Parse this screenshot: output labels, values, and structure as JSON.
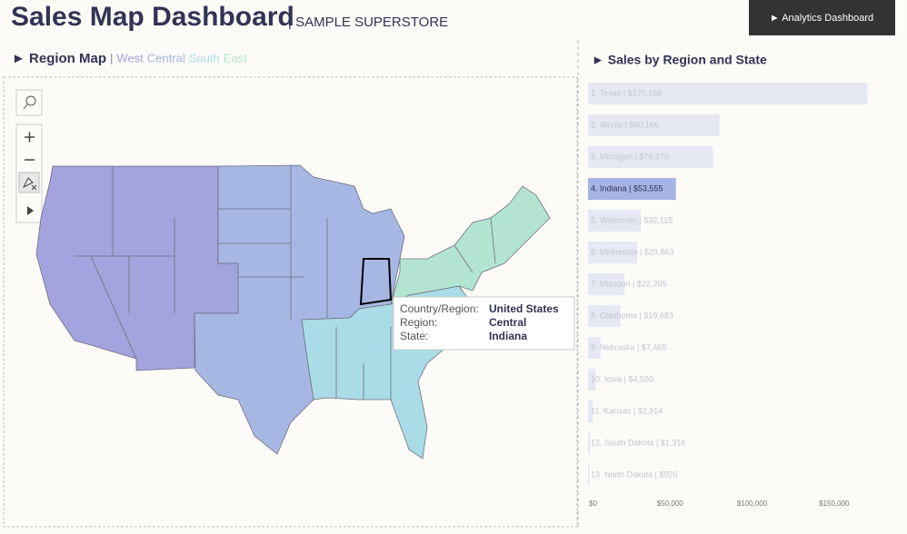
{
  "header": {
    "title": "Sales Map Dashboard",
    "subtitle": "| SAMPLE SUPERSTORE",
    "button": "► Analytics Dashboard"
  },
  "region_map": {
    "title": "► Region Map",
    "separator": "|",
    "legend": [
      {
        "name": "West",
        "color": "#a3a3dd"
      },
      {
        "name": "Central",
        "color": "#a6b7e3"
      },
      {
        "name": "South",
        "color": "#a9dce6"
      },
      {
        "name": "East",
        "color": "#b3e4d2"
      }
    ]
  },
  "tooltip": {
    "rows": [
      [
        "Country/Region:",
        "United States"
      ],
      [
        "Region:",
        "Central"
      ],
      [
        "State:",
        "Indiana"
      ]
    ]
  },
  "chart_data": {
    "type": "hbar",
    "title": "► Sales by Region and State",
    "categories": [
      "1. Texas | $170,188",
      "2. Illinois | $80,166",
      "3. Michigan | $76,270",
      "4. Indiana | $53,555",
      "5. Wisconsin | $32,115",
      "6. Minnesota | $29,863",
      "7. Missouri | $22,205",
      "8. Oklahoma | $19,683",
      "9. Nebraska | $7,465",
      "10. Iowa | $4,580",
      "11. Kansas | $2,914",
      "12. South Dakota | $1,316",
      "13. North Dakota | $920"
    ],
    "values": [
      170188,
      80166,
      76270,
      53555,
      32115,
      29863,
      22205,
      19683,
      7465,
      4580,
      2914,
      1316,
      920
    ],
    "color": "#e6e8f4",
    "highlight_color": "#a4b4e4",
    "highlight": 3,
    "xlim": [
      0,
      190000
    ],
    "xticks": [
      {
        "value": 0,
        "label": "$0"
      },
      {
        "value": 50000,
        "label": "$50,000"
      },
      {
        "value": 100000,
        "label": "$100,000"
      },
      {
        "value": 150000,
        "label": "$150,000"
      }
    ]
  }
}
